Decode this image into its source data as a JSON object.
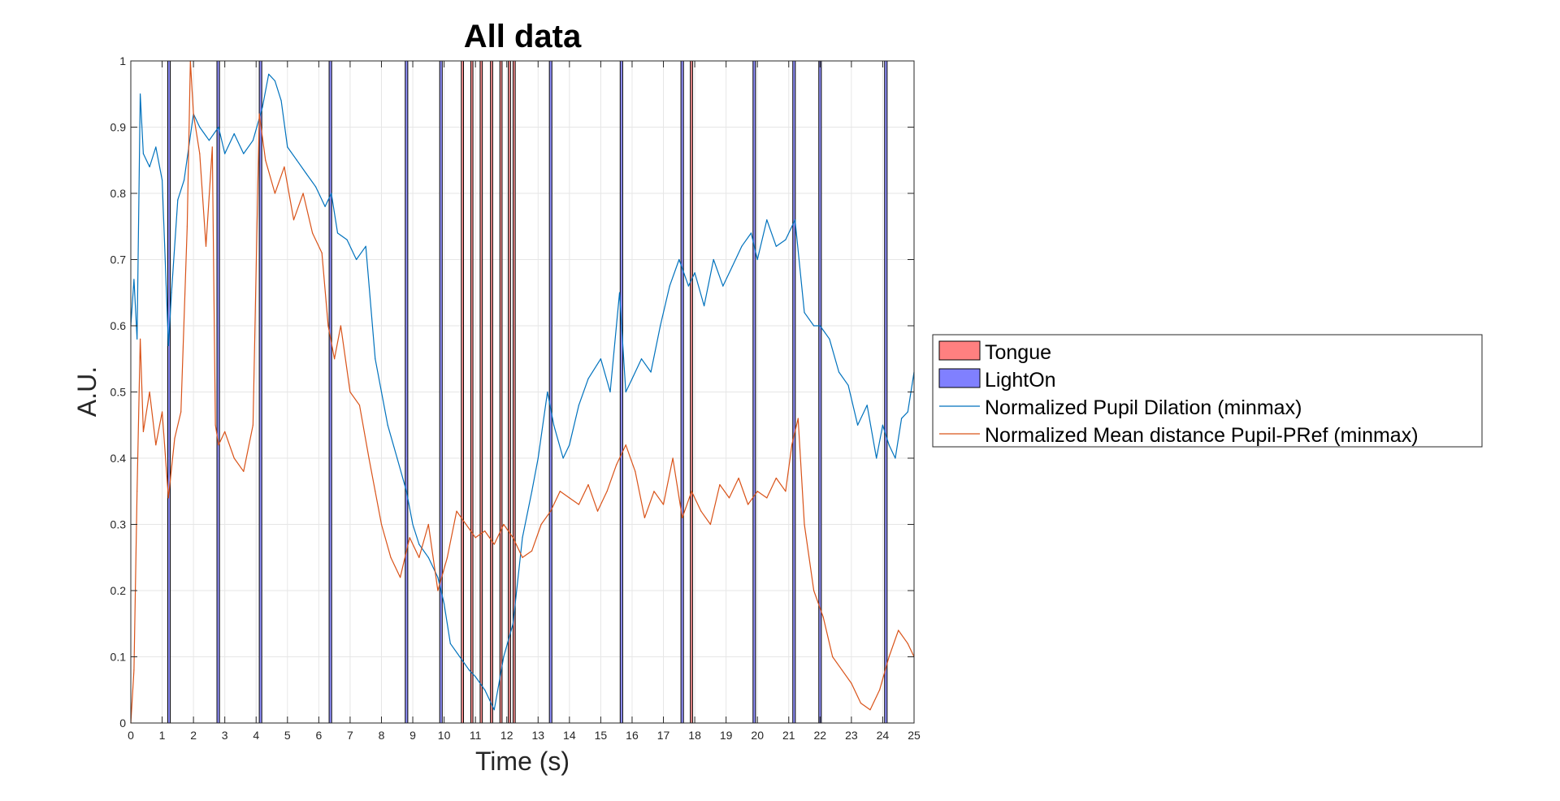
{
  "chart_data": {
    "type": "line",
    "title": "All data",
    "xlabel": "Time (s)",
    "ylabel": "A.U.",
    "xlim": [
      0,
      25
    ],
    "ylim": [
      0,
      1
    ],
    "xticks": [
      0,
      1,
      2,
      3,
      4,
      5,
      6,
      7,
      8,
      9,
      10,
      11,
      12,
      13,
      14,
      15,
      16,
      17,
      18,
      19,
      20,
      21,
      22,
      23,
      24,
      25
    ],
    "yticks": [
      0,
      0.1,
      0.2,
      0.3,
      0.4,
      0.5,
      0.6,
      0.7,
      0.8,
      0.9,
      1
    ],
    "grid": true,
    "legend_placement": "right",
    "legend": [
      {
        "label": "Tongue",
        "kind": "patch",
        "color": "#ff8080"
      },
      {
        "label": "LightOn",
        "kind": "patch",
        "color": "#8080ff"
      },
      {
        "label": "Normalized Pupil Dilation (minmax)",
        "kind": "line",
        "color": "#0072bd"
      },
      {
        "label": "Normalized Mean distance Pupil-PRef (minmax)",
        "kind": "line",
        "color": "#d95319"
      }
    ],
    "event_bands": [
      {
        "name": "LightOn",
        "color": "#8080ff",
        "intervals": [
          [
            1.18,
            1.26
          ],
          [
            2.75,
            2.83
          ],
          [
            4.1,
            4.18
          ],
          [
            6.33,
            6.41
          ],
          [
            8.76,
            8.84
          ],
          [
            9.86,
            9.94
          ],
          [
            13.36,
            13.44
          ],
          [
            15.62,
            15.7
          ],
          [
            17.56,
            17.64
          ],
          [
            19.86,
            19.94
          ],
          [
            21.13,
            21.21
          ],
          [
            21.96,
            22.04
          ],
          [
            24.06,
            24.14
          ]
        ]
      },
      {
        "name": "Tongue",
        "color": "#ff8080",
        "intervals": [
          [
            10.55,
            10.62
          ],
          [
            10.85,
            10.92
          ],
          [
            11.15,
            11.22
          ],
          [
            11.48,
            11.55
          ],
          [
            11.78,
            11.85
          ],
          [
            12.05,
            12.12
          ],
          [
            12.2,
            12.27
          ],
          [
            17.86,
            17.93
          ]
        ]
      }
    ],
    "series": [
      {
        "name": "Normalized Pupil Dilation (minmax)",
        "color": "#0072bd",
        "x": [
          0,
          0.1,
          0.2,
          0.3,
          0.4,
          0.6,
          0.8,
          1.0,
          1.2,
          1.3,
          1.5,
          1.7,
          2.0,
          2.2,
          2.5,
          2.8,
          3.0,
          3.3,
          3.6,
          3.9,
          4.2,
          4.4,
          4.6,
          4.8,
          5.0,
          5.3,
          5.6,
          5.9,
          6.2,
          6.4,
          6.6,
          6.9,
          7.2,
          7.5,
          7.8,
          8.0,
          8.2,
          8.5,
          8.8,
          9.0,
          9.2,
          9.5,
          9.8,
          10.0,
          10.2,
          10.5,
          10.8,
          11.0,
          11.3,
          11.6,
          11.9,
          12.2,
          12.5,
          12.8,
          13.0,
          13.3,
          13.5,
          13.8,
          14.0,
          14.3,
          14.6,
          15.0,
          15.3,
          15.6,
          15.8,
          16.0,
          16.3,
          16.6,
          16.9,
          17.2,
          17.5,
          17.8,
          18.0,
          18.3,
          18.6,
          18.9,
          19.2,
          19.5,
          19.8,
          20.0,
          20.3,
          20.6,
          20.9,
          21.2,
          21.5,
          21.8,
          22.0,
          22.3,
          22.6,
          22.9,
          23.2,
          23.5,
          23.8,
          24.0,
          24.2,
          24.4,
          24.6,
          24.8,
          25.0
        ],
        "y": [
          0.6,
          0.67,
          0.58,
          0.95,
          0.86,
          0.84,
          0.87,
          0.82,
          0.57,
          0.65,
          0.79,
          0.82,
          0.92,
          0.9,
          0.88,
          0.9,
          0.86,
          0.89,
          0.86,
          0.88,
          0.93,
          0.98,
          0.97,
          0.94,
          0.87,
          0.85,
          0.83,
          0.81,
          0.78,
          0.8,
          0.74,
          0.73,
          0.7,
          0.72,
          0.55,
          0.5,
          0.45,
          0.4,
          0.35,
          0.3,
          0.27,
          0.25,
          0.22,
          0.18,
          0.12,
          0.1,
          0.08,
          0.07,
          0.05,
          0.02,
          0.1,
          0.15,
          0.28,
          0.35,
          0.4,
          0.5,
          0.45,
          0.4,
          0.42,
          0.48,
          0.52,
          0.55,
          0.5,
          0.65,
          0.5,
          0.52,
          0.55,
          0.53,
          0.6,
          0.66,
          0.7,
          0.66,
          0.68,
          0.63,
          0.7,
          0.66,
          0.69,
          0.72,
          0.74,
          0.7,
          0.76,
          0.72,
          0.73,
          0.76,
          0.62,
          0.6,
          0.6,
          0.58,
          0.53,
          0.51,
          0.45,
          0.48,
          0.4,
          0.45,
          0.42,
          0.4,
          0.46,
          0.47,
          0.53
        ]
      },
      {
        "name": "Normalized Mean distance Pupil-PRef (minmax)",
        "color": "#d95319",
        "x": [
          0,
          0.1,
          0.2,
          0.3,
          0.4,
          0.6,
          0.8,
          1.0,
          1.2,
          1.4,
          1.6,
          1.8,
          1.9,
          2.0,
          2.2,
          2.4,
          2.6,
          2.7,
          2.8,
          3.0,
          3.3,
          3.6,
          3.9,
          4.1,
          4.3,
          4.6,
          4.9,
          5.2,
          5.5,
          5.8,
          6.1,
          6.3,
          6.5,
          6.7,
          7.0,
          7.3,
          7.6,
          7.8,
          8.0,
          8.3,
          8.6,
          8.9,
          9.2,
          9.5,
          9.8,
          10.1,
          10.4,
          10.7,
          11.0,
          11.3,
          11.6,
          11.9,
          12.2,
          12.5,
          12.8,
          13.1,
          13.4,
          13.7,
          14.0,
          14.3,
          14.6,
          14.9,
          15.2,
          15.5,
          15.8,
          16.1,
          16.4,
          16.7,
          17.0,
          17.3,
          17.6,
          17.9,
          18.2,
          18.5,
          18.8,
          19.1,
          19.4,
          19.7,
          20.0,
          20.3,
          20.6,
          20.9,
          21.1,
          21.3,
          21.5,
          21.8,
          22.1,
          22.4,
          22.7,
          23.0,
          23.3,
          23.6,
          23.9,
          24.2,
          24.5,
          24.8,
          25.0
        ],
        "y": [
          0.0,
          0.08,
          0.35,
          0.58,
          0.44,
          0.5,
          0.42,
          0.47,
          0.34,
          0.43,
          0.47,
          0.75,
          1.0,
          0.92,
          0.86,
          0.72,
          0.87,
          0.45,
          0.42,
          0.44,
          0.4,
          0.38,
          0.45,
          0.92,
          0.85,
          0.8,
          0.84,
          0.76,
          0.8,
          0.74,
          0.71,
          0.6,
          0.55,
          0.6,
          0.5,
          0.48,
          0.4,
          0.35,
          0.3,
          0.25,
          0.22,
          0.28,
          0.25,
          0.3,
          0.2,
          0.25,
          0.32,
          0.3,
          0.28,
          0.29,
          0.27,
          0.3,
          0.28,
          0.25,
          0.26,
          0.3,
          0.32,
          0.35,
          0.34,
          0.33,
          0.36,
          0.32,
          0.35,
          0.39,
          0.42,
          0.38,
          0.31,
          0.35,
          0.33,
          0.4,
          0.31,
          0.35,
          0.32,
          0.3,
          0.36,
          0.34,
          0.37,
          0.33,
          0.35,
          0.34,
          0.37,
          0.35,
          0.42,
          0.46,
          0.3,
          0.2,
          0.16,
          0.1,
          0.08,
          0.06,
          0.03,
          0.02,
          0.05,
          0.1,
          0.14,
          0.12,
          0.1
        ]
      }
    ]
  }
}
